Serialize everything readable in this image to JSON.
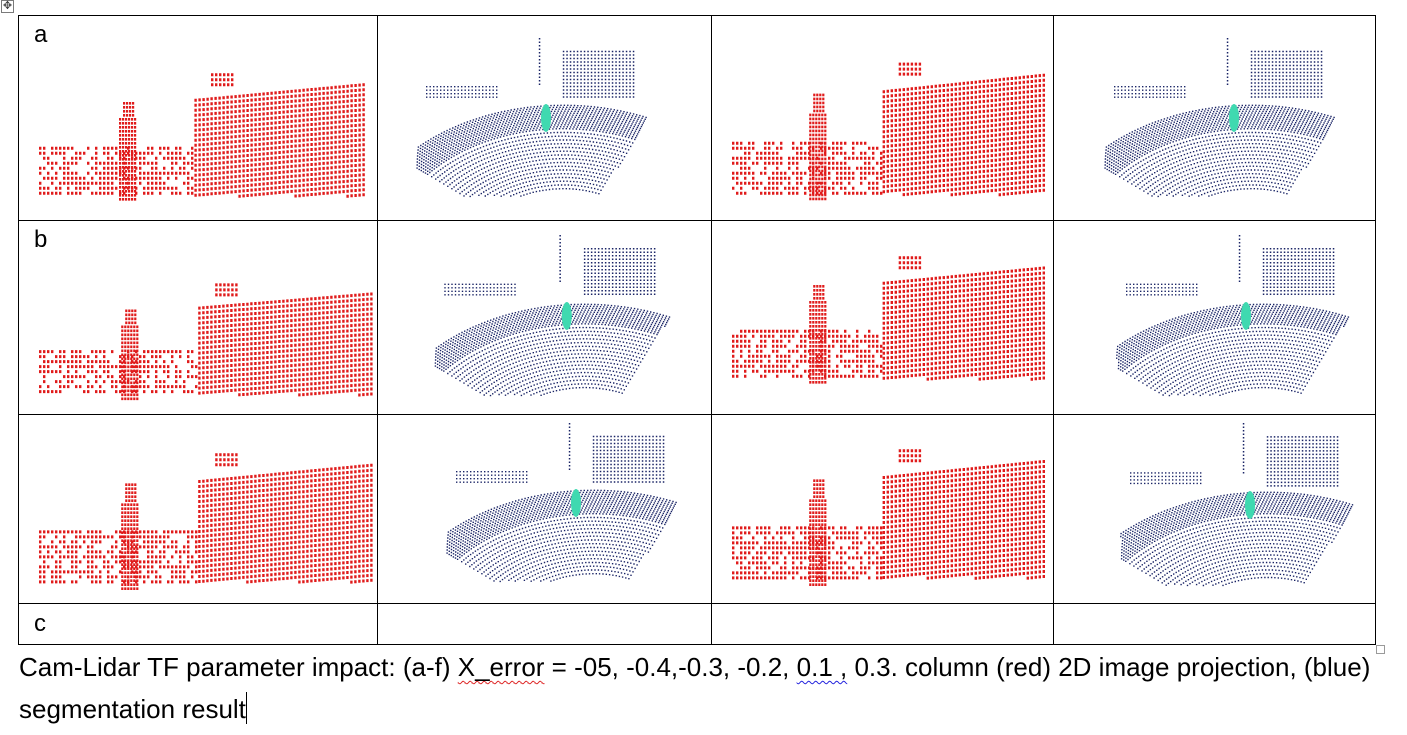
{
  "table": {
    "row_labels": [
      "a",
      "b",
      "c"
    ],
    "panels": [
      {
        "kind": "projection",
        "name": "panel-a-projection"
      },
      {
        "kind": "segmentation",
        "name": "panel-a-segmentation"
      },
      {
        "kind": "projection",
        "name": "panel-b-projection"
      },
      {
        "kind": "segmentation",
        "name": "panel-b-segmentation"
      },
      {
        "kind": "projection",
        "name": "panel-c-projection"
      },
      {
        "kind": "segmentation",
        "name": "panel-c-segmentation"
      },
      {
        "kind": "projection",
        "name": "panel-d-projection"
      },
      {
        "kind": "segmentation",
        "name": "panel-d-segmentation"
      },
      {
        "kind": "projection",
        "name": "panel-e-projection"
      },
      {
        "kind": "segmentation",
        "name": "panel-e-segmentation"
      },
      {
        "kind": "projection",
        "name": "panel-f-projection"
      },
      {
        "kind": "segmentation",
        "name": "panel-f-segmentation"
      }
    ]
  },
  "caption": {
    "part1": "Cam-Lidar TF parameter impact: (a-f) ",
    "x_error_term": "X_error",
    "part2": " = -05, -0.4,-0.3, -0.2, ",
    "value_flagged": "0.1 ,",
    "part3": " 0.3. column (red) 2D image projection, (blue) segmentation result"
  },
  "colors": {
    "projection_points": "#e01b1b",
    "segmentation_points": "#1a2466",
    "segmentation_dark": "#0c1450",
    "pedestrian_cluster": "#3fd9b0",
    "border": "#000000"
  }
}
